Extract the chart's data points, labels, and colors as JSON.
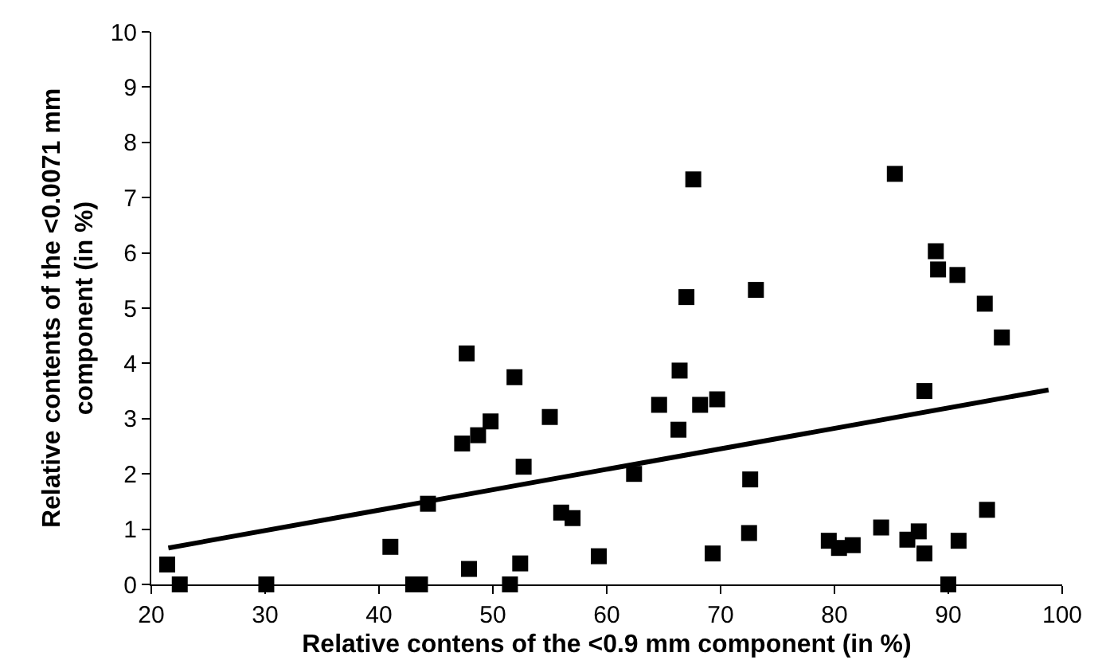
{
  "chart_data": {
    "type": "scatter",
    "xlabel": "Relative contens of the <0.9 mm component (in %)",
    "ylabel": "Relative contents of the <0.0071 mm component (in %)",
    "xlim": [
      20,
      100
    ],
    "xticks": [
      20,
      30,
      40,
      50,
      60,
      70,
      80,
      90,
      100
    ],
    "ylim": [
      0,
      10
    ],
    "yticks": [
      0,
      1,
      2,
      3,
      4,
      5,
      6,
      7,
      8,
      9,
      10
    ],
    "marker": "square",
    "series": [
      {
        "color": "#000000",
        "x": [
          21.4,
          22.5,
          30.1,
          41.0,
          43.0,
          43.6,
          44.3,
          47.3,
          47.7,
          48.7,
          49.8,
          51.9,
          55.0,
          52.7,
          56.0,
          57.0,
          47.9,
          52.4,
          51.5,
          59.3,
          67.6,
          85.3,
          67.0,
          73.1,
          66.4,
          64.6,
          68.2,
          69.7,
          66.3,
          62.4,
          72.6,
          72.5,
          69.3,
          88.9,
          89.1,
          90.8,
          93.2,
          94.7,
          87.9,
          93.4,
          84.1,
          79.5,
          80.4,
          81.6,
          86.4,
          87.4,
          87.9,
          90.9,
          90.0
        ],
        "values": [
          0.36,
          0,
          0,
          0.68,
          0,
          0,
          1.46,
          2.55,
          4.18,
          2.7,
          2.95,
          3.75,
          3.03,
          2.13,
          1.3,
          1.2,
          0.28,
          0.38,
          0,
          0.51,
          7.33,
          7.43,
          5.2,
          5.33,
          3.87,
          3.25,
          3.25,
          3.35,
          2.8,
          2.0,
          1.9,
          0.93,
          0.56,
          6.03,
          5.7,
          5.6,
          5.08,
          4.47,
          3.5,
          1.35,
          1.03,
          0.79,
          0.66,
          0.71,
          0.81,
          0.96,
          0.56,
          0.79,
          0
        ]
      },
      {
        "type": "line",
        "color": "#000000",
        "marker": "none",
        "line_style": "solid",
        "x": [
          21.5,
          98.8
        ],
        "values": [
          0.66,
          3.52
        ]
      }
    ]
  }
}
